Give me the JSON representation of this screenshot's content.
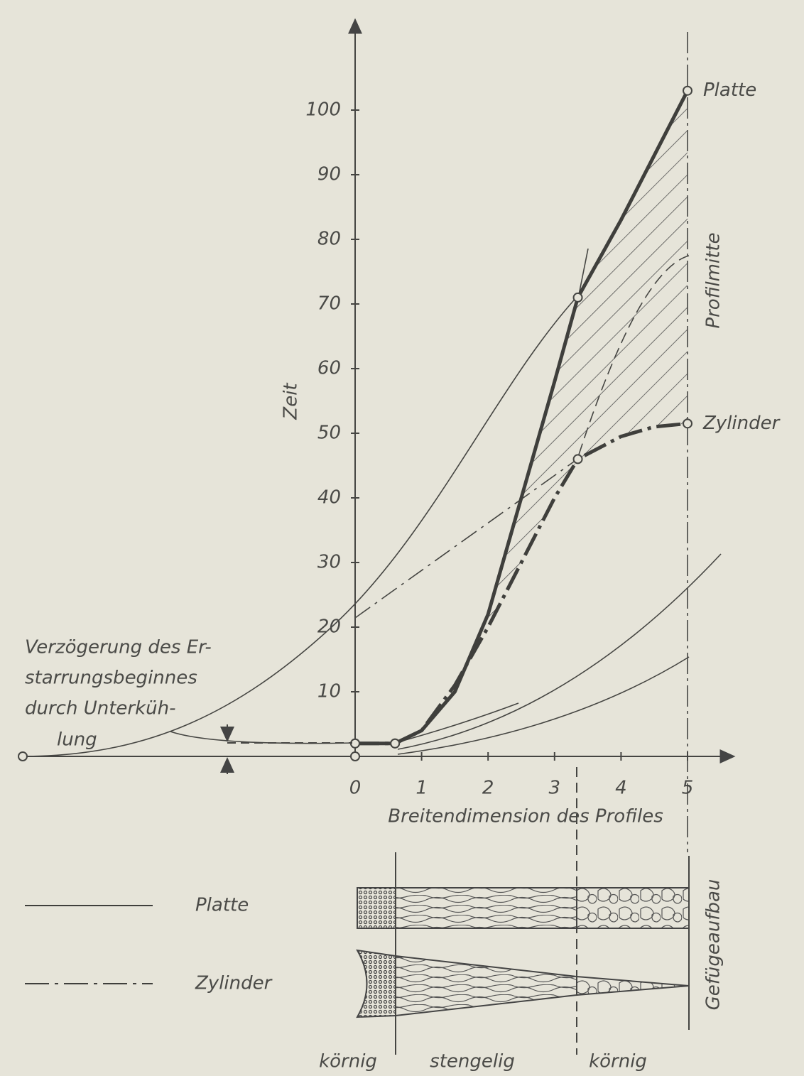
{
  "chart_data": {
    "type": "line",
    "x_label": "Breitendimension des Profiles",
    "y_label": "Zeit",
    "xlim": [
      -5,
      5.7
    ],
    "ylim": [
      0,
      114
    ],
    "xticks": [
      0,
      1,
      2,
      3,
      4,
      5
    ],
    "yticks": [
      10,
      20,
      30,
      40,
      50,
      60,
      70,
      80,
      90,
      100
    ],
    "series": [
      {
        "name": "Platte",
        "style": "solid",
        "color": "#3f3f3c",
        "x": [
          0,
          0.6,
          1,
          1.5,
          2,
          2.5,
          3,
          3.35,
          4,
          4.5,
          5
        ],
        "values": [
          2,
          2,
          4,
          10,
          22,
          40,
          58,
          71,
          83,
          93,
          103
        ]
      },
      {
        "name": "Zylinder",
        "style": "dashdot",
        "color": "#3f3f3c",
        "x": [
          0,
          0.6,
          1,
          1.5,
          2,
          2.5,
          3,
          3.35,
          4,
          4.5,
          5
        ],
        "values": [
          2,
          2,
          4,
          11,
          20,
          30,
          40,
          46,
          49.5,
          51,
          51.5
        ]
      }
    ],
    "end_labels": [
      "Platte",
      "Zylinder"
    ],
    "annotation_lines": [
      "Verzögerung des Er-",
      "starrungsbeginnes",
      "durch Unterküh-",
      "lung"
    ],
    "vertical_label": "Profilmitte",
    "structure": {
      "title": "Gefügeaufbau",
      "zones": [
        "körnig",
        "stengelig",
        "körnig"
      ]
    }
  }
}
